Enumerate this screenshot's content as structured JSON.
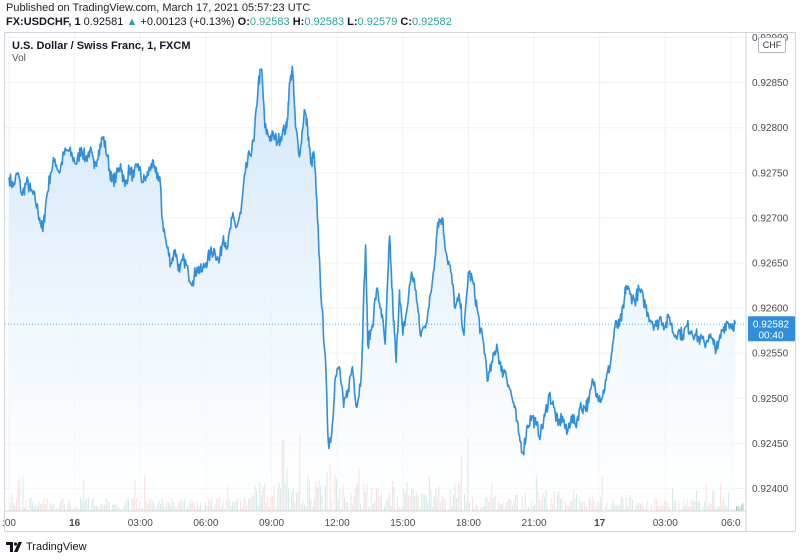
{
  "header": {
    "published": "Published on TradingView.com, March 17, 2021 05:57:23 UTC",
    "symbol": "FX:USDCHF, 1",
    "last": "0.92581",
    "change_arrow": "▲",
    "change": "+0.00123 (+0.13%)",
    "open_label": "O:",
    "open": "0.92583",
    "high_label": "H:",
    "high": "0.92583",
    "low_label": "L:",
    "low": "0.92579",
    "close_label": "C:",
    "close": "0.92582"
  },
  "legend": {
    "title": "U.S. Dollar / Swiss Franc, 1, FXCM",
    "vol": "Vol"
  },
  "currency_badge": "CHF",
  "price_tag": {
    "value": "0.92582",
    "countdown": "00:40"
  },
  "footer": {
    "brand": "TradingView",
    "logo_icon": "tradingview-logo-icon"
  },
  "colors": {
    "line": "#2f8fdd",
    "area_top": "#cfe5f9",
    "area_bottom": "#ffffff",
    "vol_up": "#7fc7bd",
    "vol_down": "#f0a7a4",
    "grid": "#eef0f3",
    "tag_bg": "#2f8fdd",
    "up_text": "#26a69a"
  },
  "chart_data": {
    "type": "area",
    "title": "U.S. Dollar / Swiss Franc, 1, FXCM",
    "ylim": [
      0.92375,
      0.92905
    ],
    "y_ticks": [
      "0.92400",
      "0.92450",
      "0.92500",
      "0.92550",
      "0.92600",
      "0.92650",
      "0.92700",
      "0.92750",
      "0.92800",
      "0.92850",
      "0.92900"
    ],
    "x_ticks": [
      ":00",
      "16",
      "03:00",
      "06:00",
      "09:00",
      "12:00",
      "15:00",
      "18:00",
      "21:00",
      "17",
      "03:00",
      "06:0"
    ],
    "x_ticks_hours_since_15th_21utc": [
      0,
      3,
      6,
      9,
      12,
      15,
      18,
      21,
      24,
      27,
      30,
      33
    ],
    "x_range_hours": [
      0,
      33.6
    ],
    "grid": true,
    "series": [
      {
        "values": [
          [
            0.0,
            0.92745
          ],
          [
            0.2,
            0.92735
          ],
          [
            0.4,
            0.9275
          ],
          [
            0.6,
            0.92725
          ],
          [
            0.8,
            0.9274
          ],
          [
            1.0,
            0.9273
          ],
          [
            1.2,
            0.9272
          ],
          [
            1.4,
            0.927
          ],
          [
            1.55,
            0.92685
          ],
          [
            1.7,
            0.9272
          ],
          [
            1.9,
            0.9275
          ],
          [
            2.1,
            0.92765
          ],
          [
            2.3,
            0.9275
          ],
          [
            2.5,
            0.9277
          ],
          [
            2.7,
            0.92775
          ],
          [
            2.9,
            0.92768
          ],
          [
            3.1,
            0.9276
          ],
          [
            3.3,
            0.92778
          ],
          [
            3.5,
            0.92765
          ],
          [
            3.7,
            0.92775
          ],
          [
            3.9,
            0.92755
          ],
          [
            4.1,
            0.92775
          ],
          [
            4.3,
            0.9279
          ],
          [
            4.5,
            0.92768
          ],
          [
            4.7,
            0.9274
          ],
          [
            4.9,
            0.92745
          ],
          [
            5.1,
            0.9276
          ],
          [
            5.3,
            0.92735
          ],
          [
            5.5,
            0.92755
          ],
          [
            5.7,
            0.92745
          ],
          [
            5.9,
            0.9276
          ],
          [
            6.1,
            0.9274
          ],
          [
            6.3,
            0.92745
          ],
          [
            6.5,
            0.9276
          ],
          [
            6.7,
            0.9275
          ],
          [
            6.9,
            0.92745
          ],
          [
            7.0,
            0.927
          ],
          [
            7.2,
            0.9267
          ],
          [
            7.4,
            0.9265
          ],
          [
            7.6,
            0.92665
          ],
          [
            7.8,
            0.9264
          ],
          [
            8.0,
            0.92655
          ],
          [
            8.2,
            0.92638
          ],
          [
            8.4,
            0.9263
          ],
          [
            8.6,
            0.92645
          ],
          [
            8.8,
            0.9264
          ],
          [
            9.0,
            0.9265
          ],
          [
            9.2,
            0.9266
          ],
          [
            9.4,
            0.92665
          ],
          [
            9.6,
            0.9265
          ],
          [
            9.8,
            0.9268
          ],
          [
            10.0,
            0.92668
          ],
          [
            10.2,
            0.927
          ],
          [
            10.4,
            0.9269
          ],
          [
            10.6,
            0.92705
          ],
          [
            10.8,
            0.9275
          ],
          [
            11.0,
            0.9277
          ],
          [
            11.2,
            0.92785
          ],
          [
            11.4,
            0.9285
          ],
          [
            11.55,
            0.92865
          ],
          [
            11.7,
            0.928
          ],
          [
            11.9,
            0.9279
          ],
          [
            12.1,
            0.9279
          ],
          [
            12.3,
            0.92785
          ],
          [
            12.5,
            0.92795
          ],
          [
            12.7,
            0.928
          ],
          [
            12.8,
            0.9284
          ],
          [
            12.95,
            0.92868
          ],
          [
            13.1,
            0.928
          ],
          [
            13.3,
            0.9277
          ],
          [
            13.5,
            0.9282
          ],
          [
            13.65,
            0.928
          ],
          [
            13.8,
            0.9276
          ],
          [
            13.95,
            0.9277
          ],
          [
            14.1,
            0.927
          ],
          [
            14.3,
            0.926
          ],
          [
            14.45,
            0.9255
          ],
          [
            14.6,
            0.9245
          ],
          [
            14.75,
            0.9246
          ],
          [
            14.9,
            0.9252
          ],
          [
            15.1,
            0.92535
          ],
          [
            15.3,
            0.9249
          ],
          [
            15.5,
            0.9251
          ],
          [
            15.7,
            0.92535
          ],
          [
            15.9,
            0.9249
          ],
          [
            16.1,
            0.92525
          ],
          [
            16.3,
            0.9267
          ],
          [
            16.4,
            0.9256
          ],
          [
            16.6,
            0.9258
          ],
          [
            16.8,
            0.9262
          ],
          [
            17.0,
            0.926
          ],
          [
            17.2,
            0.9256
          ],
          [
            17.4,
            0.9268
          ],
          [
            17.55,
            0.926
          ],
          [
            17.7,
            0.9254
          ],
          [
            17.85,
            0.9262
          ],
          [
            18.0,
            0.9257
          ],
          [
            18.2,
            0.926
          ],
          [
            18.4,
            0.9264
          ],
          [
            18.6,
            0.9262
          ],
          [
            18.8,
            0.9257
          ],
          [
            19.0,
            0.9258
          ],
          [
            19.2,
            0.926
          ],
          [
            19.4,
            0.9264
          ],
          [
            19.6,
            0.92695
          ],
          [
            19.8,
            0.927
          ],
          [
            20.0,
            0.9266
          ],
          [
            20.2,
            0.9264
          ],
          [
            20.4,
            0.926
          ],
          [
            20.6,
            0.9261
          ],
          [
            20.8,
            0.9257
          ],
          [
            21.0,
            0.9264
          ],
          [
            21.2,
            0.9263
          ],
          [
            21.4,
            0.926
          ],
          [
            21.55,
            0.92575
          ],
          [
            21.7,
            0.9256
          ],
          [
            21.9,
            0.9252
          ],
          [
            22.1,
            0.9254
          ],
          [
            22.3,
            0.9256
          ],
          [
            22.5,
            0.9253
          ],
          [
            22.7,
            0.9253
          ],
          [
            22.9,
            0.9251
          ],
          [
            23.1,
            0.9249
          ],
          [
            23.3,
            0.9246
          ],
          [
            23.5,
            0.9244
          ],
          [
            23.7,
            0.9247
          ],
          [
            23.9,
            0.9248
          ],
          [
            24.1,
            0.9247
          ],
          [
            24.3,
            0.9246
          ],
          [
            24.5,
            0.9248
          ],
          [
            24.7,
            0.92505
          ],
          [
            24.9,
            0.9249
          ],
          [
            25.1,
            0.9247
          ],
          [
            25.3,
            0.9248
          ],
          [
            25.5,
            0.9246
          ],
          [
            25.7,
            0.9248
          ],
          [
            25.9,
            0.9247
          ],
          [
            26.1,
            0.9249
          ],
          [
            26.3,
            0.9249
          ],
          [
            26.5,
            0.92495
          ],
          [
            26.7,
            0.9252
          ],
          [
            26.9,
            0.92505
          ],
          [
            27.1,
            0.925
          ],
          [
            27.3,
            0.9252
          ],
          [
            27.5,
            0.9254
          ],
          [
            27.7,
            0.9258
          ],
          [
            27.9,
            0.9258
          ],
          [
            28.1,
            0.926
          ],
          [
            28.2,
            0.92625
          ],
          [
            28.4,
            0.92615
          ],
          [
            28.6,
            0.92608
          ],
          [
            28.8,
            0.9262
          ],
          [
            29.0,
            0.9261
          ],
          [
            29.2,
            0.92595
          ],
          [
            29.4,
            0.92585
          ],
          [
            29.6,
            0.9258
          ],
          [
            29.8,
            0.9259
          ],
          [
            30.0,
            0.9258
          ],
          [
            30.2,
            0.9259
          ],
          [
            30.4,
            0.9257
          ],
          [
            30.6,
            0.92575
          ],
          [
            30.8,
            0.9257
          ],
          [
            31.0,
            0.9258
          ],
          [
            31.2,
            0.92575
          ],
          [
            31.4,
            0.9257
          ],
          [
            31.6,
            0.92565
          ],
          [
            31.8,
            0.9256
          ],
          [
            32.0,
            0.9257
          ],
          [
            32.2,
            0.9256
          ],
          [
            32.4,
            0.92555
          ],
          [
            32.6,
            0.92575
          ],
          [
            32.8,
            0.92585
          ],
          [
            33.0,
            0.92582
          ],
          [
            33.2,
            0.92582
          ]
        ]
      }
    ]
  }
}
